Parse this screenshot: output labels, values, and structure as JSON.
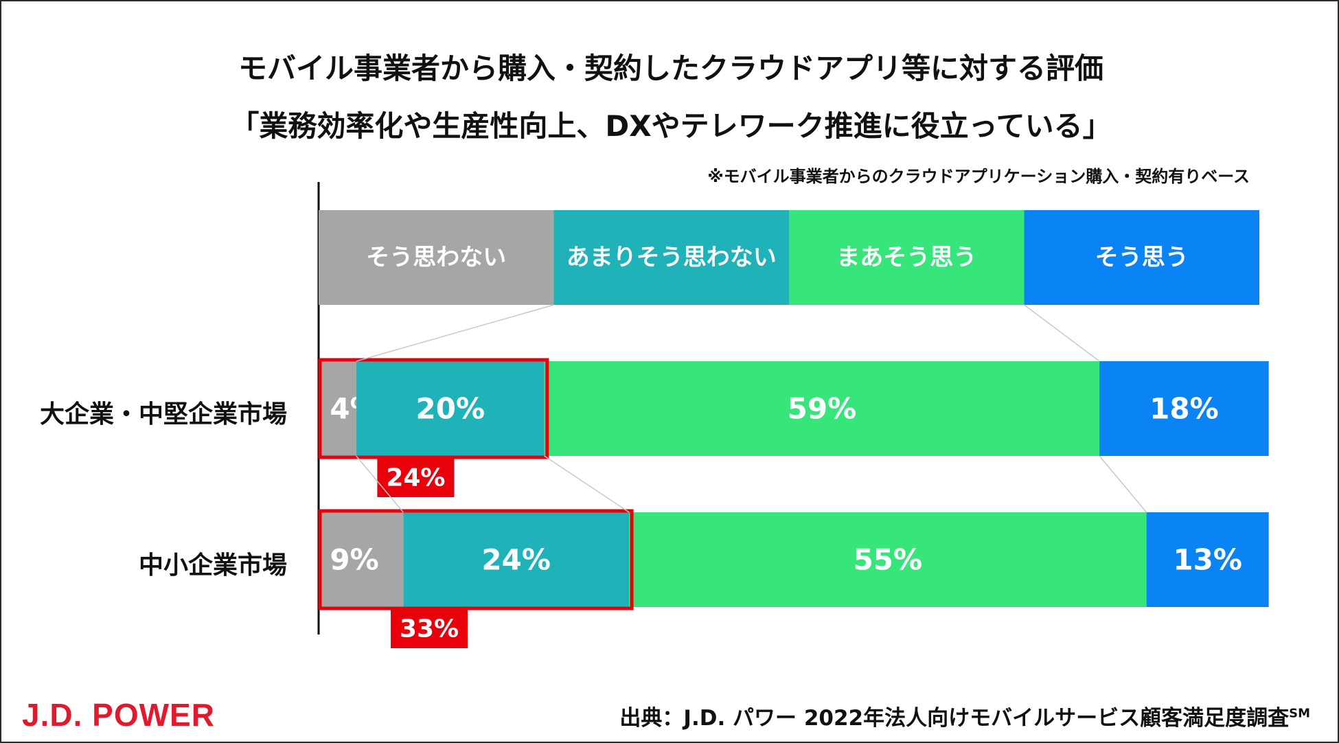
{
  "title_line1": "モバイル事業者から購入・契約したクラウドアプリ等に対する評価",
  "title_line2": "「業務効率化や生産性向上、DXやテレワーク推進に役立っている」",
  "note": "※モバイル事業者からのクラウドアプリケーション購入・契約有りベース",
  "source_text": "出典：J.D. パワー 2022年法人向けモバイルサービス顧客満足度調査",
  "source_mark": "SM",
  "logo": "J.D. POWER",
  "colors": {
    "no": "#a6a6a6",
    "not_really": "#1fb2b9",
    "somewhat": "#37e67a",
    "yes": "#0a84f5",
    "highlight": "#e8000b"
  },
  "chart_data": {
    "type": "bar",
    "orientation": "horizontal-stacked-100",
    "legend": [
      "そう思わない",
      "あまりそう思わない",
      "まあそう思う",
      "そう思う"
    ],
    "categories": [
      "大企業・中堅企業市場",
      "中小企業市場"
    ],
    "series": [
      {
        "name": "そう思わない",
        "values": [
          4,
          9
        ],
        "labels": [
          "4%",
          "9%"
        ]
      },
      {
        "name": "あまりそう思わない",
        "values": [
          20,
          24
        ],
        "labels": [
          "20%",
          "24%"
        ]
      },
      {
        "name": "まあそう思う",
        "values": [
          59,
          55
        ],
        "labels": [
          "59%",
          "55%"
        ]
      },
      {
        "name": "そう思う",
        "values": [
          18,
          13
        ],
        "labels": [
          "18%",
          "13%"
        ]
      }
    ],
    "highlight_totals": [
      "24%",
      "33%"
    ],
    "xlim": [
      0,
      100
    ]
  }
}
